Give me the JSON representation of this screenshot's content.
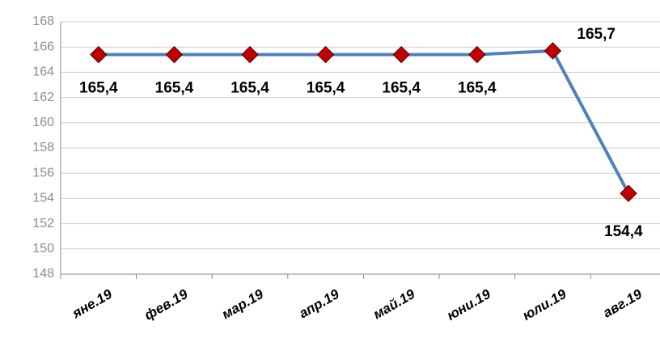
{
  "chart_data": {
    "type": "line",
    "categories": [
      "яне.19",
      "фев.19",
      "мар.19",
      "апр.19",
      "май.19",
      "юни.19",
      "юли.19",
      "авг.19"
    ],
    "series": [
      {
        "name": "",
        "color": "#4f81bd",
        "marker_color": "#c00000",
        "values": [
          165.4,
          165.4,
          165.4,
          165.4,
          165.4,
          165.4,
          165.7,
          154.4
        ],
        "value_labels": [
          "165,4",
          "165,4",
          "165,4",
          "165,4",
          "165,4",
          "165,4",
          "165,7",
          "154,4"
        ]
      }
    ],
    "ylim": [
      148,
      168
    ],
    "yticks": [
      148,
      150,
      152,
      154,
      156,
      158,
      160,
      162,
      164,
      166,
      168
    ],
    "grid": true
  }
}
